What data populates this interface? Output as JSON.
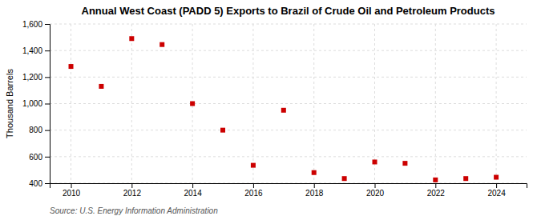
{
  "chart_data": {
    "type": "scatter",
    "title": "Annual West Coast (PADD 5) Exports to Brazil of Crude Oil and Petroleum Products",
    "ylabel": "Thousand Barrels",
    "source": "Source: U.S. Energy Information Administration",
    "x": [
      2010,
      2011,
      2012,
      2013,
      2014,
      2015,
      2016,
      2017,
      2018,
      2019,
      2020,
      2021,
      2022,
      2023,
      2024
    ],
    "values": [
      1280,
      1130,
      1490,
      1445,
      1000,
      800,
      535,
      950,
      480,
      435,
      560,
      550,
      425,
      435,
      445
    ],
    "color": "#cc0000",
    "marker": "square",
    "xlim": [
      2009.3,
      2025.0
    ],
    "xticks": [
      2010,
      2012,
      2014,
      2016,
      2018,
      2020,
      2022,
      2024
    ],
    "ylim": [
      400,
      1600
    ],
    "yticks": [
      400,
      600,
      800,
      {
        "value": 1000,
        "label": "1,000"
      },
      {
        "value": 1200,
        "label": "1,200"
      },
      {
        "value": 1400,
        "label": "1,400"
      },
      {
        "value": 1600,
        "label": "1,600"
      }
    ],
    "grid": true
  }
}
